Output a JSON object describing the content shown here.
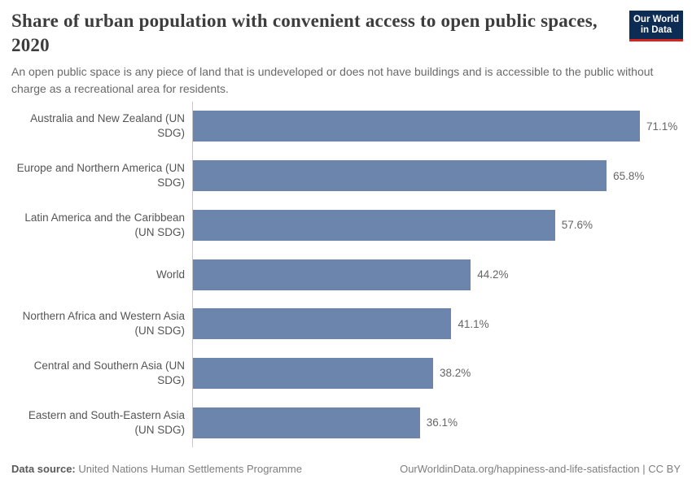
{
  "header": {
    "title": "Share of urban population with convenient access to open public spaces, 2020",
    "subtitle": "An open public space is any piece of land that is undeveloped or does not have buildings and is accessible to the public without charge as a recreational area for residents.",
    "logo": {
      "line1": "Our World",
      "line2": "in Data"
    }
  },
  "chart_data": {
    "type": "bar",
    "orientation": "horizontal",
    "title": "Share of urban population with convenient access to open public spaces, 2020",
    "xlabel": "",
    "ylabel": "",
    "xlim": [
      0,
      71.1
    ],
    "grid": false,
    "legend": false,
    "categories": [
      "Australia and New Zealand (UN SDG)",
      "Europe and Northern America (UN SDG)",
      "Latin America and the Caribbean (UN SDG)",
      "World",
      "Northern Africa and Western Asia (UN SDG)",
      "Central and Southern Asia (UN SDG)",
      "Eastern and South-Eastern Asia (UN SDG)"
    ],
    "values": [
      71.1,
      65.8,
      57.6,
      44.2,
      41.1,
      38.2,
      36.1
    ],
    "value_labels": [
      "71.1%",
      "65.8%",
      "57.6%",
      "44.2%",
      "41.1%",
      "38.2%",
      "36.1%"
    ],
    "bar_color": "#6c85ac"
  },
  "footer": {
    "data_source_label": "Data source:",
    "data_source_value": " United Nations Human Settlements Programme",
    "link": "OurWorldinData.org/happiness-and-life-satisfaction",
    "license": " | CC BY"
  },
  "colors": {
    "bar": "#6c85ac",
    "logo_navy": "#0d2c54",
    "logo_red": "#d8241f",
    "title_text": "#3d3d3d",
    "axis_line": "#c8c8c8"
  }
}
